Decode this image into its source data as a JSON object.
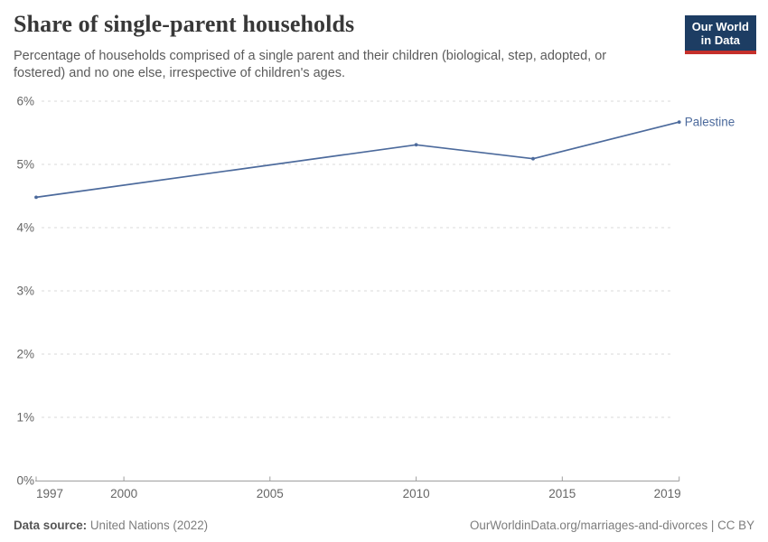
{
  "chart_data": {
    "type": "line",
    "title": "Share of single-parent households",
    "subtitle_lines": [
      "Percentage of households comprised of a single parent and their children (biological, step, adopted, or",
      "fostered) and no one else, irrespective of children's ages."
    ],
    "series": [
      {
        "name": "Palestine",
        "color": "#4C6A9C",
        "points": [
          {
            "year": 1997,
            "value": 4.48
          },
          {
            "year": 2010,
            "value": 5.31
          },
          {
            "year": 2014,
            "value": 5.09
          },
          {
            "year": 2019,
            "value": 5.67
          }
        ]
      }
    ],
    "x_ticks": [
      {
        "value": 1997,
        "label": "1997"
      },
      {
        "value": 2000,
        "label": "2000"
      },
      {
        "value": 2005,
        "label": "2005"
      },
      {
        "value": 2010,
        "label": "2010"
      },
      {
        "value": 2015,
        "label": "2015"
      },
      {
        "value": 2019,
        "label": "2019"
      }
    ],
    "y_ticks": [
      {
        "value": 0,
        "label": "0%"
      },
      {
        "value": 1,
        "label": "1%"
      },
      {
        "value": 2,
        "label": "2%"
      },
      {
        "value": 3,
        "label": "3%"
      },
      {
        "value": 4,
        "label": "4%"
      },
      {
        "value": 5,
        "label": "5%"
      },
      {
        "value": 6,
        "label": "6%"
      }
    ],
    "xlim": [
      1997,
      2019
    ],
    "ylim": [
      0,
      6
    ],
    "grid": "horizontal-dashed",
    "legend_position": "end-of-line-label"
  },
  "branding": {
    "logo_line1": "Our World",
    "logo_line2": "in Data",
    "logo_bg": "#1d3d63",
    "logo_stripe": "#c5302b"
  },
  "footer": {
    "datasource_label": "Data source:",
    "datasource_value": " United Nations (2022)",
    "credit": "OurWorldinData.org/marriages-and-divorces | CC BY"
  },
  "colors": {
    "series_blue": "#4C6A9C",
    "gridline": "#d9d9d9",
    "axis": "#9e9e9e",
    "tick_text": "#666666"
  }
}
